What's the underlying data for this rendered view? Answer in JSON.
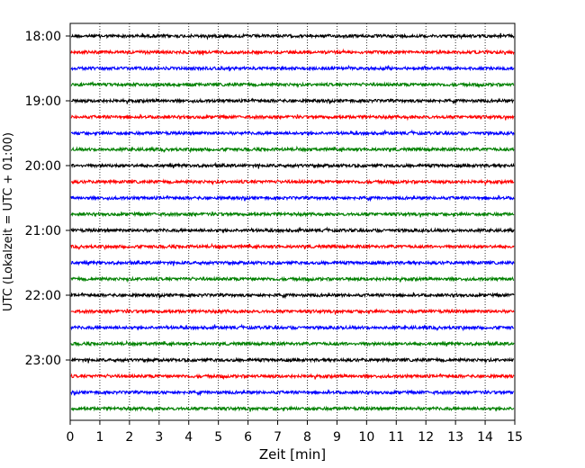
{
  "chart_data": {
    "type": "line",
    "subtype": "helicorder-seismogram",
    "title": "",
    "xlabel": "Zeit  [min]",
    "ylabel": "UTC (Lokalzeit = UTC + 01:00)",
    "xlim": [
      0,
      15
    ],
    "x_ticks": [
      "0",
      "1",
      "2",
      "3",
      "4",
      "5",
      "6",
      "7",
      "8",
      "9",
      "10",
      "11",
      "12",
      "13",
      "14",
      "15"
    ],
    "y_tick_labels": [
      "18:00",
      "19:00",
      "20:00",
      "21:00",
      "22:00",
      "23:00"
    ],
    "grid": "vertical dotted at each minute",
    "legend": "none",
    "trace_interval_minutes": 15,
    "color_cycle": [
      "#000000",
      "#ff0000",
      "#0000ff",
      "#008000"
    ],
    "traces": [
      {
        "start": "18:00",
        "color": "#000000"
      },
      {
        "start": "18:15",
        "color": "#ff0000"
      },
      {
        "start": "18:30",
        "color": "#0000ff"
      },
      {
        "start": "18:45",
        "color": "#008000"
      },
      {
        "start": "19:00",
        "color": "#000000"
      },
      {
        "start": "19:15",
        "color": "#ff0000"
      },
      {
        "start": "19:30",
        "color": "#0000ff"
      },
      {
        "start": "19:45",
        "color": "#008000"
      },
      {
        "start": "20:00",
        "color": "#000000"
      },
      {
        "start": "20:15",
        "color": "#ff0000"
      },
      {
        "start": "20:30",
        "color": "#0000ff"
      },
      {
        "start": "20:45",
        "color": "#008000"
      },
      {
        "start": "21:00",
        "color": "#000000"
      },
      {
        "start": "21:15",
        "color": "#ff0000"
      },
      {
        "start": "21:30",
        "color": "#0000ff"
      },
      {
        "start": "21:45",
        "color": "#008000"
      },
      {
        "start": "22:00",
        "color": "#000000"
      },
      {
        "start": "22:15",
        "color": "#ff0000"
      },
      {
        "start": "22:30",
        "color": "#0000ff"
      },
      {
        "start": "22:45",
        "color": "#008000"
      },
      {
        "start": "23:00",
        "color": "#000000"
      },
      {
        "start": "23:15",
        "color": "#ff0000"
      },
      {
        "start": "23:30",
        "color": "#0000ff"
      },
      {
        "start": "23:45",
        "color": "#008000"
      }
    ]
  }
}
